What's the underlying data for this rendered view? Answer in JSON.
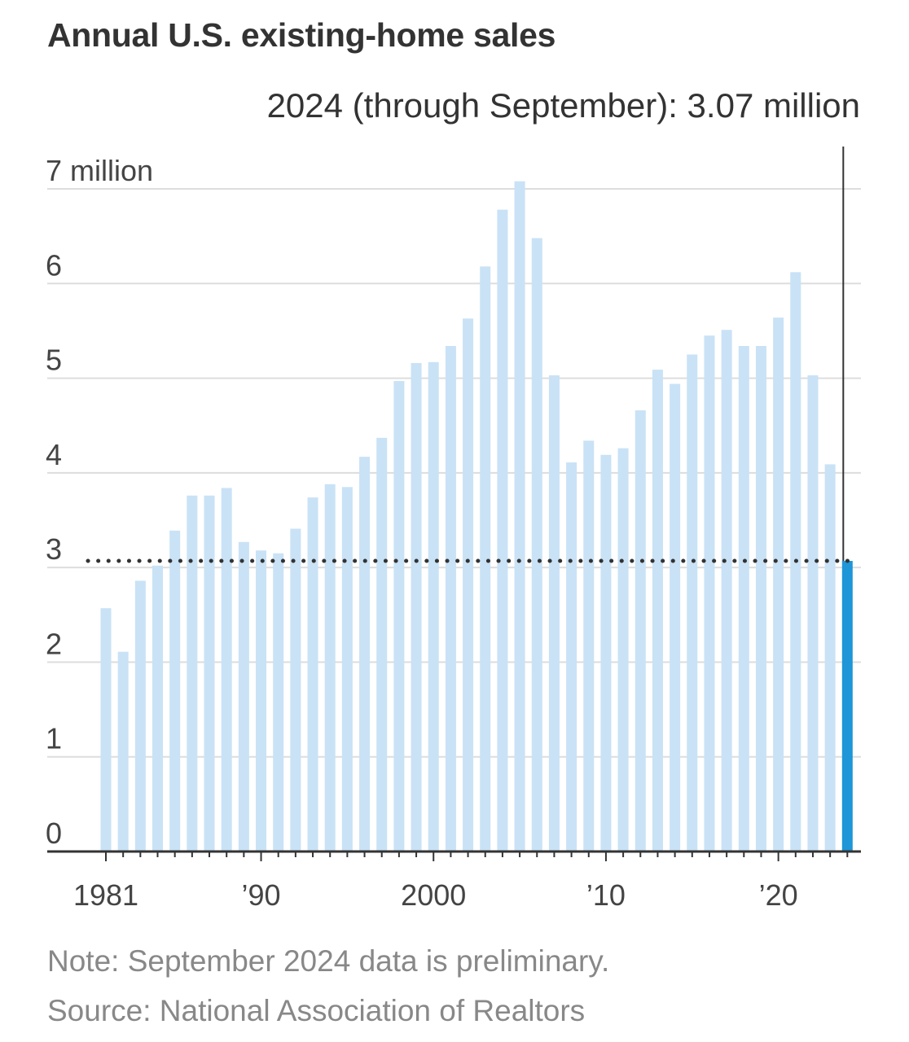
{
  "chart_data": {
    "type": "bar",
    "title": "Annual U.S. existing-home sales",
    "annotation": "2024 (through September): 3.07 million",
    "xlabel": "",
    "ylabel": "",
    "ylim": [
      0,
      7
    ],
    "grid": true,
    "y_ticks": [
      {
        "value": 7,
        "label": "7 million"
      },
      {
        "value": 6,
        "label": "6"
      },
      {
        "value": 5,
        "label": "5"
      },
      {
        "value": 4,
        "label": "4"
      },
      {
        "value": 3,
        "label": "3"
      },
      {
        "value": 2,
        "label": "2"
      },
      {
        "value": 1,
        "label": "1"
      },
      {
        "value": 0,
        "label": "0"
      }
    ],
    "x_ticks": [
      {
        "year": 1981,
        "label": "1981"
      },
      {
        "year": 1990,
        "label": "’90"
      },
      {
        "year": 2000,
        "label": "2000"
      },
      {
        "year": 2010,
        "label": "’10"
      },
      {
        "year": 2020,
        "label": "’20"
      }
    ],
    "categories": [
      1981,
      1982,
      1983,
      1984,
      1985,
      1986,
      1987,
      1988,
      1989,
      1990,
      1991,
      1992,
      1993,
      1994,
      1995,
      1996,
      1997,
      1998,
      1999,
      2000,
      2001,
      2002,
      2003,
      2004,
      2005,
      2006,
      2007,
      2008,
      2009,
      2010,
      2011,
      2012,
      2013,
      2014,
      2015,
      2016,
      2017,
      2018,
      2019,
      2020,
      2021,
      2022,
      2023,
      2024
    ],
    "values": [
      2.57,
      2.11,
      2.86,
      3.02,
      3.39,
      3.76,
      3.76,
      3.84,
      3.27,
      3.18,
      3.15,
      3.41,
      3.74,
      3.88,
      3.85,
      4.17,
      4.37,
      4.97,
      5.16,
      5.17,
      5.34,
      5.63,
      6.18,
      6.78,
      7.08,
      6.48,
      5.03,
      4.11,
      4.34,
      4.19,
      4.26,
      4.66,
      5.09,
      4.94,
      5.25,
      5.45,
      5.51,
      5.34,
      5.34,
      5.64,
      6.12,
      5.03,
      4.09,
      3.07
    ],
    "highlight": {
      "year": 2024,
      "value": 3.07
    },
    "reference_line": {
      "value": 3.07,
      "style": "dotted"
    },
    "colors": {
      "bar": "#c9e2f6",
      "highlight": "#1e96d8",
      "reference": "#333333",
      "grid": "#dddddd",
      "axis": "#333333"
    }
  },
  "footer": {
    "note": "Note: September 2024 data is preliminary.",
    "source": "Source: National Association of Realtors"
  }
}
